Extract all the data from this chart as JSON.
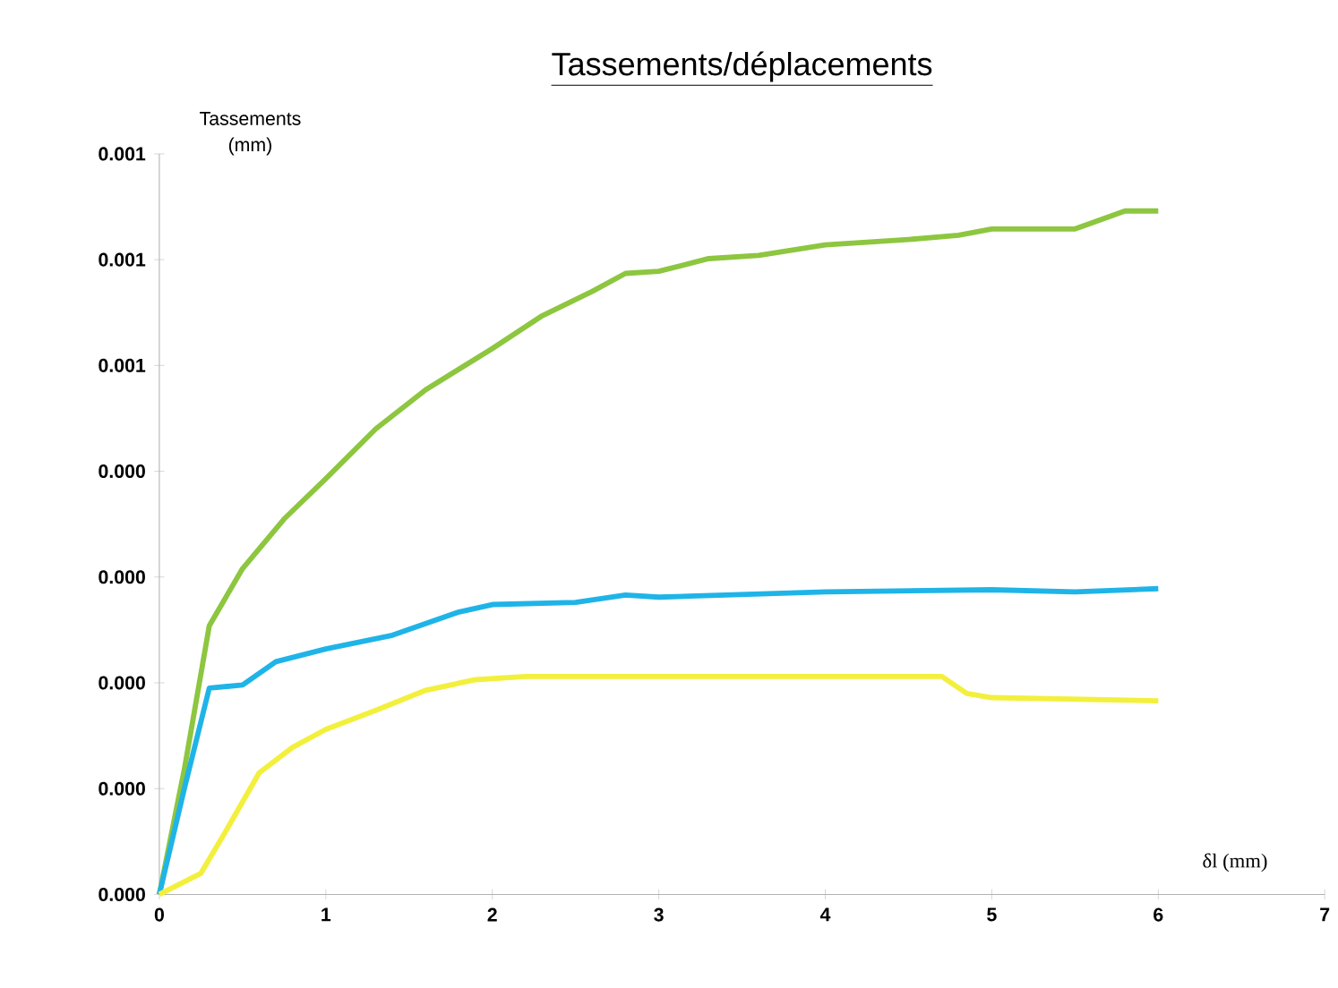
{
  "chart_data": {
    "type": "line",
    "title": "Tassements/déplacements",
    "xlabel": "δl (mm)",
    "ylabel": "Tassements (mm)",
    "xlim": [
      0,
      7
    ],
    "xticks": [
      0,
      1,
      2,
      3,
      4,
      5,
      6,
      7
    ],
    "ylim": [
      0,
      0.0007
    ],
    "yticks": [
      {
        "value": 0,
        "label": "0.000"
      },
      {
        "value": 0.0001,
        "label": "0.000"
      },
      {
        "value": 0.0002,
        "label": "0.000"
      },
      {
        "value": 0.0003,
        "label": "0.000"
      },
      {
        "value": 0.0004,
        "label": "0.000"
      },
      {
        "value": 0.0005,
        "label": "0.001"
      },
      {
        "value": 0.0006,
        "label": "0.001"
      },
      {
        "value": 0.0007,
        "label": "0.001"
      }
    ],
    "grid": false,
    "marker": "none",
    "line_style": "solid",
    "series": [
      {
        "color": "#8dc63f",
        "x": [
          0,
          0.15,
          0.3,
          0.5,
          0.75,
          1.0,
          1.3,
          1.6,
          2.0,
          2.3,
          2.6,
          2.8,
          3.0,
          3.3,
          3.6,
          4.0,
          4.5,
          4.8,
          5.0,
          5.5,
          5.8,
          6.0
        ],
        "values": [
          0,
          0.000118,
          0.000254,
          0.000308,
          0.000355,
          0.000393,
          0.00044,
          0.000477,
          0.000516,
          0.000547,
          0.00057,
          0.000587,
          0.000589,
          0.000601,
          0.000604,
          0.000614,
          0.000619,
          0.000623,
          0.000629,
          0.000629,
          0.000646,
          0.000646
        ]
      },
      {
        "color": "#1fb4e8",
        "x": [
          0,
          0.15,
          0.3,
          0.5,
          0.7,
          1.0,
          1.4,
          1.8,
          2.0,
          2.5,
          2.8,
          3.0,
          4.0,
          5.0,
          5.5,
          6.0
        ],
        "values": [
          0,
          0.0001,
          0.000195,
          0.000198,
          0.00022,
          0.000232,
          0.000245,
          0.000267,
          0.000274,
          0.000276,
          0.000283,
          0.000281,
          0.000286,
          0.000288,
          0.000286,
          0.000289
        ]
      },
      {
        "color": "#f2f03c",
        "x": [
          0,
          0.25,
          0.4,
          0.6,
          0.8,
          1.0,
          1.3,
          1.6,
          1.9,
          2.2,
          3.0,
          4.0,
          4.7,
          4.85,
          5.0,
          6.0
        ],
        "values": [
          0,
          2e-05,
          6e-05,
          0.000115,
          0.000139,
          0.000156,
          0.000174,
          0.000193,
          0.000203,
          0.000206,
          0.000206,
          0.000206,
          0.000206,
          0.00019,
          0.000186,
          0.000183
        ]
      }
    ]
  }
}
